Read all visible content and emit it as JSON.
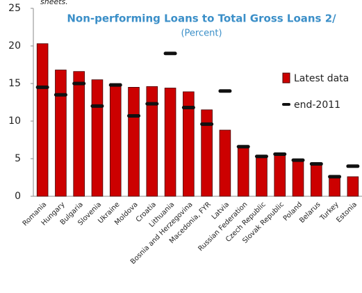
{
  "chart_data": {
    "type": "bar",
    "note": "sheets.",
    "title": "Non-performing Loans to Total Gross Loans 2/",
    "subtitle": "(Percent)",
    "categories": [
      "Romania",
      "Hungary",
      "Bulgaria",
      "Slovenia",
      "Ukraine",
      "Moldova",
      "Croatia",
      "Lithuania",
      "Bosnia and Herzegovina",
      "Macedonia, FYR",
      "Latvia",
      "Russian Federation",
      "Czech Republic",
      "Slovak Republic",
      "Poland",
      "Belarus",
      "Turkey",
      "Estonia"
    ],
    "series": [
      {
        "name": "Latest data",
        "color": "#cc0000",
        "values": [
          20.3,
          16.8,
          16.6,
          15.5,
          15.0,
          14.5,
          14.6,
          14.4,
          13.9,
          11.5,
          8.8,
          6.6,
          5.2,
          5.5,
          4.8,
          4.2,
          2.6,
          2.6
        ]
      },
      {
        "name": "end-2011",
        "color": "#111111",
        "values": [
          14.5,
          13.5,
          15.0,
          12.0,
          14.8,
          10.7,
          12.3,
          19.0,
          11.8,
          9.6,
          14.0,
          6.6,
          5.3,
          5.6,
          4.8,
          4.3,
          2.6,
          4.0
        ]
      }
    ],
    "ylim": [
      0,
      25
    ],
    "yticks": [
      0,
      5,
      10,
      15,
      20,
      25
    ],
    "legend": "right"
  }
}
